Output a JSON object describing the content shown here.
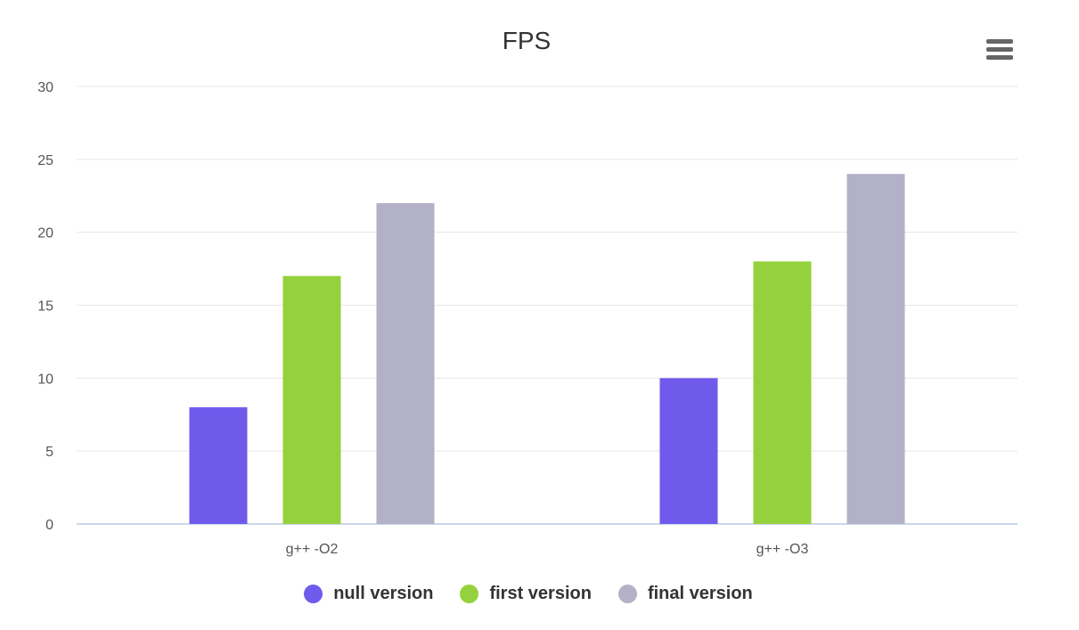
{
  "chart_data": {
    "type": "bar",
    "title": "FPS",
    "xlabel": "",
    "ylabel": "",
    "categories": [
      "g++ -O2",
      "g++ -O3"
    ],
    "series": [
      {
        "name": "null version",
        "values": [
          8,
          10
        ],
        "color": "#6f5aeb"
      },
      {
        "name": "first version",
        "values": [
          17,
          18
        ],
        "color": "#95d13c"
      },
      {
        "name": "final version",
        "values": [
          22,
          24
        ],
        "color": "#b3b1c7"
      }
    ],
    "ylim": [
      0,
      30
    ],
    "yticks": [
      "0",
      "5",
      "10",
      "15",
      "20",
      "25",
      "30"
    ],
    "grid": true,
    "legend_position": "bottom"
  },
  "toolbar": {
    "menu_icon": "hamburger-menu-icon"
  }
}
